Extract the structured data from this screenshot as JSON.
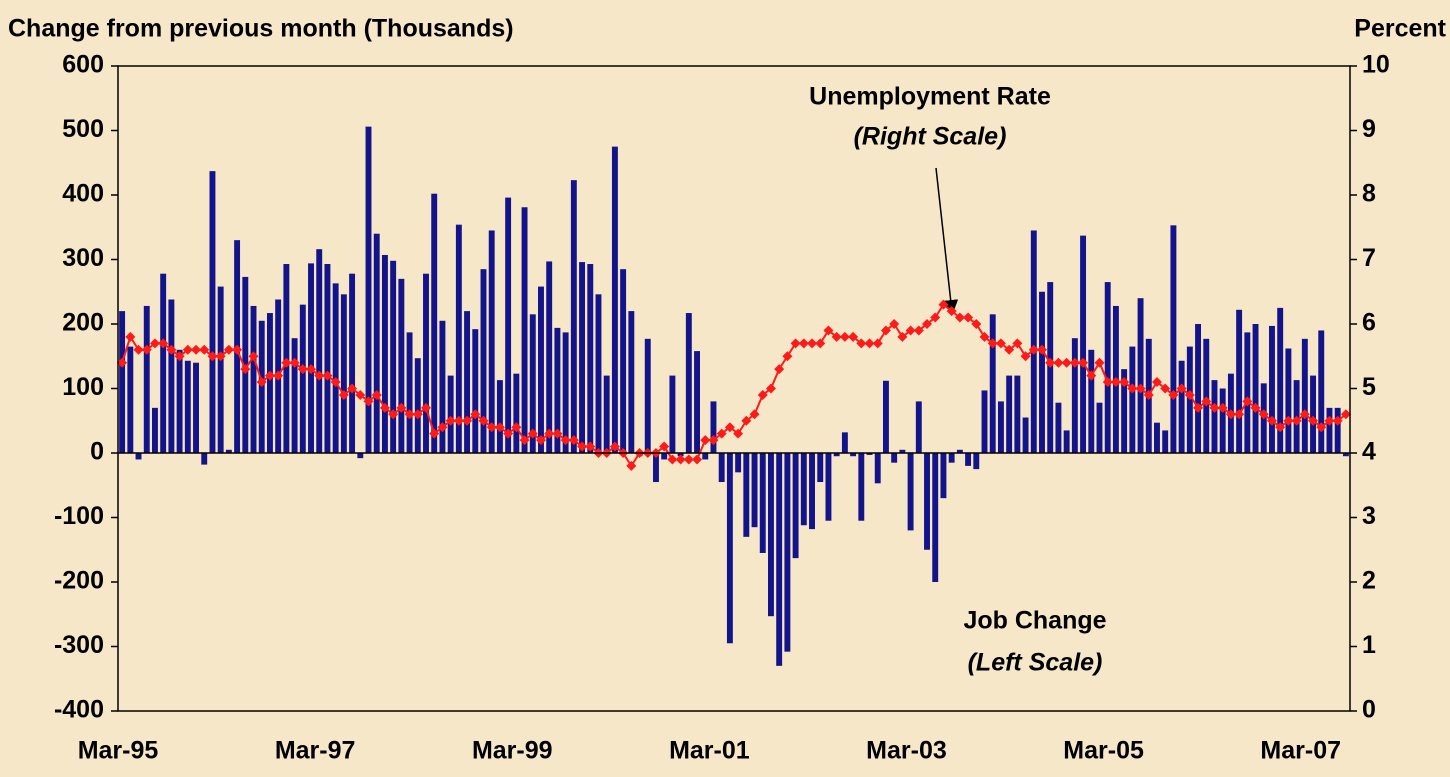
{
  "chart_data": {
    "type": "bar",
    "y_label": "Change from previous month (Thousands)",
    "y2_label": "Percent",
    "annotations": [
      "(Right Scale)",
      "(Left Scale)"
    ],
    "categories": [
      "Mar-95",
      null,
      null,
      null,
      null,
      null,
      null,
      null,
      null,
      null,
      null,
      null,
      null,
      null,
      null,
      null,
      null,
      null,
      null,
      null,
      null,
      null,
      null,
      null,
      "Mar-97",
      null,
      null,
      null,
      null,
      null,
      null,
      null,
      null,
      null,
      null,
      null,
      null,
      null,
      null,
      null,
      null,
      null,
      null,
      null,
      null,
      null,
      null,
      null,
      "Mar-99",
      null,
      null,
      null,
      null,
      null,
      null,
      null,
      null,
      null,
      null,
      null,
      null,
      null,
      null,
      null,
      null,
      null,
      null,
      null,
      null,
      null,
      null,
      null,
      "Mar-01",
      null,
      null,
      null,
      null,
      null,
      null,
      null,
      null,
      null,
      null,
      null,
      null,
      null,
      null,
      null,
      null,
      null,
      null,
      null,
      null,
      null,
      null,
      null,
      "Mar-03",
      null,
      null,
      null,
      null,
      null,
      null,
      null,
      null,
      null,
      null,
      null,
      null,
      null,
      null,
      null,
      null,
      null,
      null,
      null,
      null,
      null,
      null,
      null,
      "Mar-05",
      null,
      null,
      null,
      null,
      null,
      null,
      null,
      null,
      null,
      null,
      null,
      null,
      null,
      null,
      null,
      null,
      null,
      null,
      null,
      null,
      null,
      null,
      null,
      "Mar-07",
      null,
      null,
      null,
      null,
      null
    ],
    "series": [
      {
        "name": "Job Change",
        "type": "bar",
        "color": "#14148a",
        "values": [
          220,
          165,
          -10,
          228,
          70,
          278,
          238,
          160,
          143,
          140,
          -18,
          437,
          258,
          5,
          330,
          273,
          228,
          205,
          217,
          238,
          293,
          178,
          230,
          294,
          316,
          293,
          263,
          246,
          278,
          -8,
          506,
          340,
          307,
          298,
          270,
          187,
          147,
          278,
          402,
          205,
          120,
          354,
          220,
          192,
          285,
          345,
          113,
          396,
          123,
          381,
          215,
          258,
          297,
          194,
          187,
          423,
          296,
          293,
          246,
          120,
          475,
          285,
          220,
          -5,
          177,
          -45,
          -10,
          120,
          -5,
          217,
          158,
          -10,
          80,
          -45,
          -295,
          -30,
          -130,
          -115,
          -155,
          -253,
          -330,
          -308,
          -163,
          -112,
          -118,
          -45,
          -105,
          -5,
          32,
          -5,
          -105,
          -3,
          -47,
          112,
          -15,
          5,
          -120,
          80,
          -150,
          -200,
          -70,
          -15,
          5,
          -20,
          -25,
          97,
          215,
          80,
          120,
          120,
          55,
          345,
          250,
          265,
          78,
          35,
          178,
          337,
          160,
          78,
          265,
          228,
          130,
          165,
          240,
          177,
          47,
          35,
          353,
          143,
          165,
          200,
          177,
          113,
          100,
          123,
          222,
          187,
          200,
          108,
          197,
          225,
          162,
          113,
          177,
          120,
          190,
          70,
          70,
          -5
        ]
      },
      {
        "name": "Unemployment Rate",
        "type": "line",
        "axis": "y2",
        "color": "#ff1a1a",
        "values": [
          5.4,
          5.8,
          5.6,
          5.6,
          5.7,
          5.7,
          5.6,
          5.5,
          5.6,
          5.6,
          5.6,
          5.5,
          5.5,
          5.6,
          5.6,
          5.3,
          5.5,
          5.1,
          5.2,
          5.2,
          5.4,
          5.4,
          5.3,
          5.3,
          5.2,
          5.2,
          5.1,
          4.9,
          5.0,
          4.9,
          4.8,
          4.9,
          4.7,
          4.6,
          4.7,
          4.6,
          4.6,
          4.7,
          4.3,
          4.4,
          4.5,
          4.5,
          4.5,
          4.6,
          4.5,
          4.4,
          4.4,
          4.3,
          4.4,
          4.2,
          4.3,
          4.2,
          4.3,
          4.3,
          4.2,
          4.2,
          4.1,
          4.1,
          4.0,
          4.0,
          4.1,
          4.0,
          3.8,
          4.0,
          4.0,
          4.0,
          4.1,
          3.9,
          3.9,
          3.9,
          3.9,
          4.2,
          4.2,
          4.3,
          4.4,
          4.3,
          4.5,
          4.6,
          4.9,
          5.0,
          5.3,
          5.5,
          5.7,
          5.7,
          5.7,
          5.7,
          5.9,
          5.8,
          5.8,
          5.8,
          5.7,
          5.7,
          5.7,
          5.9,
          6.0,
          5.8,
          5.9,
          5.9,
          6.0,
          6.1,
          6.3,
          6.2,
          6.1,
          6.1,
          6.0,
          5.8,
          5.7,
          5.7,
          5.6,
          5.7,
          5.5,
          5.6,
          5.6,
          5.4,
          5.4,
          5.4,
          5.4,
          5.4,
          5.2,
          5.4,
          5.1,
          5.1,
          5.1,
          5.0,
          5.0,
          4.9,
          5.1,
          5.0,
          4.9,
          5.0,
          4.9,
          4.7,
          4.8,
          4.7,
          4.7,
          4.6,
          4.6,
          4.8,
          4.7,
          4.6,
          4.5,
          4.4,
          4.5,
          4.5,
          4.6,
          4.5,
          4.4,
          4.5,
          4.5,
          4.6
        ]
      }
    ],
    "ylim": [
      -400,
      600
    ],
    "yticks": [
      -400,
      -300,
      -200,
      -100,
      0,
      100,
      200,
      300,
      400,
      500,
      600
    ],
    "y2lim": [
      0,
      10
    ],
    "y2ticks": [
      0,
      1,
      2,
      3,
      4,
      5,
      6,
      7,
      8,
      9,
      10
    ]
  }
}
